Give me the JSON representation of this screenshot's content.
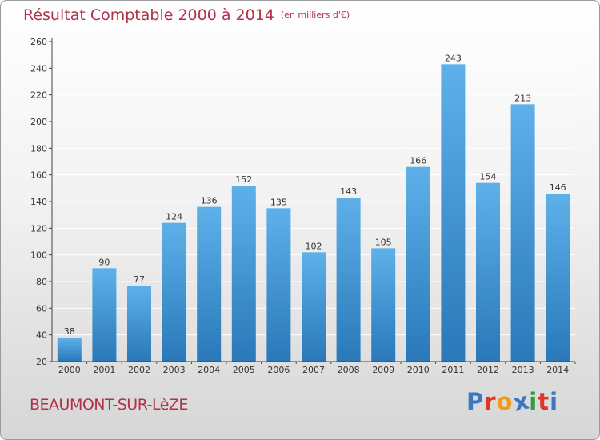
{
  "header": {
    "title": "Résultat Comptable 2000 à 2014",
    "subtitle": "(en milliers d'€)"
  },
  "footer": {
    "city": "BEAUMONT-SUR-LèZE",
    "brand_letters": [
      "P",
      "r",
      "o",
      "x",
      "i",
      "t",
      "i"
    ],
    "brand_colors": [
      "#3a78c4",
      "#e0352b",
      "#f19a17",
      "#3a78c4",
      "#2f9e3e",
      "#e0352b",
      "#3a78c4"
    ]
  },
  "colors": {
    "bar_top": "#5eb0ea",
    "bar_bottom": "#2a78b8",
    "grid": "#ffffff",
    "axis": "#444444",
    "text": "#333333"
  },
  "chart_data": {
    "type": "bar",
    "title": "Résultat Comptable 2000 à 2014",
    "categories": [
      "2000",
      "2001",
      "2002",
      "2003",
      "2004",
      "2005",
      "2006",
      "2007",
      "2008",
      "2009",
      "2010",
      "2011",
      "2012",
      "2013",
      "2014"
    ],
    "values": [
      38,
      90,
      77,
      124,
      136,
      152,
      135,
      102,
      143,
      105,
      166,
      243,
      154,
      213,
      146
    ],
    "ylim": [
      20,
      260
    ],
    "yticks": [
      20,
      40,
      60,
      80,
      100,
      120,
      140,
      160,
      180,
      200,
      220,
      240,
      260
    ],
    "grid": true,
    "data_labels": true
  }
}
